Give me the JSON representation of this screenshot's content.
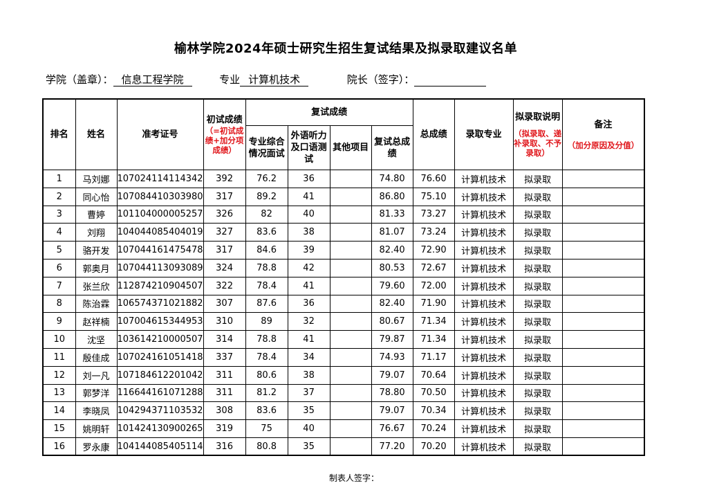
{
  "title": "榆林学院2024年硕士研究生招生复试结果及拟录取建议名单",
  "subheader": {
    "college_label": "学院（盖章）：",
    "college_value": "信息工程学院",
    "major_label": "专业",
    "major_value": "计算机技术",
    "dean_label": "院长（签字）："
  },
  "table": {
    "headers": {
      "rank": "排名",
      "name": "姓名",
      "exam_id": "准考证号",
      "prelim": "初试成绩",
      "prelim_note": "（=初试成绩+加分项成绩）",
      "retest_group": "复试成绩",
      "retest_major": "专业综合情况面试",
      "retest_lang": "外语听力及口语测试",
      "retest_other": "其他项目",
      "retest_total": "复试总成绩",
      "total": "总成绩",
      "admit_major": "录取专业",
      "admit_status": "拟录取说明",
      "admit_status_note": "（拟录取、递补录取、不予录取）",
      "remark": "备注",
      "remark_note": "（加分原因及分值）"
    },
    "rows": [
      [
        "1",
        "马刘娜",
        "107024114114342",
        "392",
        "76.2",
        "36",
        "",
        "74.80",
        "76.60",
        "计算机技术",
        "拟录取",
        ""
      ],
      [
        "2",
        "同心怡",
        "107084410303980",
        "317",
        "89.2",
        "41",
        "",
        "86.80",
        "75.10",
        "计算机技术",
        "拟录取",
        ""
      ],
      [
        "3",
        "曹婷",
        "101104000005257",
        "326",
        "82",
        "40",
        "",
        "81.33",
        "73.27",
        "计算机技术",
        "拟录取",
        ""
      ],
      [
        "4",
        "刘翔",
        "104044085404019",
        "327",
        "83.6",
        "38",
        "",
        "81.07",
        "73.24",
        "计算机技术",
        "拟录取",
        ""
      ],
      [
        "5",
        "骆开发",
        "107044161475478",
        "317",
        "84.6",
        "39",
        "",
        "82.40",
        "72.90",
        "计算机技术",
        "拟录取",
        ""
      ],
      [
        "6",
        "郭奥月",
        "107044113093089",
        "324",
        "78.8",
        "42",
        "",
        "80.53",
        "72.67",
        "计算机技术",
        "拟录取",
        ""
      ],
      [
        "7",
        "张兰欣",
        "112874210904507",
        "322",
        "78.4",
        "41",
        "",
        "79.60",
        "72.00",
        "计算机技术",
        "拟录取",
        ""
      ],
      [
        "8",
        "陈治霖",
        "106574371021882",
        "307",
        "87.6",
        "36",
        "",
        "82.40",
        "71.90",
        "计算机技术",
        "拟录取",
        ""
      ],
      [
        "9",
        "赵祥楠",
        "107004615344953",
        "310",
        "89",
        "32",
        "",
        "80.67",
        "71.34",
        "计算机技术",
        "拟录取",
        ""
      ],
      [
        "10",
        "沈坚",
        "103614210000507",
        "314",
        "78.8",
        "41",
        "",
        "79.87",
        "71.34",
        "计算机技术",
        "拟录取",
        ""
      ],
      [
        "11",
        "殷佳成",
        "107024161051418",
        "337",
        "78.4",
        "34",
        "",
        "74.93",
        "71.17",
        "计算机技术",
        "拟录取",
        ""
      ],
      [
        "12",
        "刘一凡",
        "107184612201042",
        "311",
        "80.6",
        "38",
        "",
        "79.07",
        "70.64",
        "计算机技术",
        "拟录取",
        ""
      ],
      [
        "13",
        "郭梦洋",
        "116644161071288",
        "311",
        "81.2",
        "37",
        "",
        "78.80",
        "70.50",
        "计算机技术",
        "拟录取",
        ""
      ],
      [
        "14",
        "李晓凤",
        "104294371103532",
        "308",
        "83.6",
        "35",
        "",
        "79.07",
        "70.34",
        "计算机技术",
        "拟录取",
        ""
      ],
      [
        "15",
        "姚明轩",
        "101424130900265",
        "319",
        "75",
        "40",
        "",
        "76.67",
        "70.24",
        "计算机技术",
        "拟录取",
        ""
      ],
      [
        "16",
        "罗永康",
        "104144085405114",
        "316",
        "80.8",
        "35",
        "",
        "77.20",
        "70.20",
        "计算机技术",
        "拟录取",
        ""
      ]
    ]
  },
  "footer": "制表人签字：",
  "colors": {
    "note_red": "#e0161b"
  }
}
